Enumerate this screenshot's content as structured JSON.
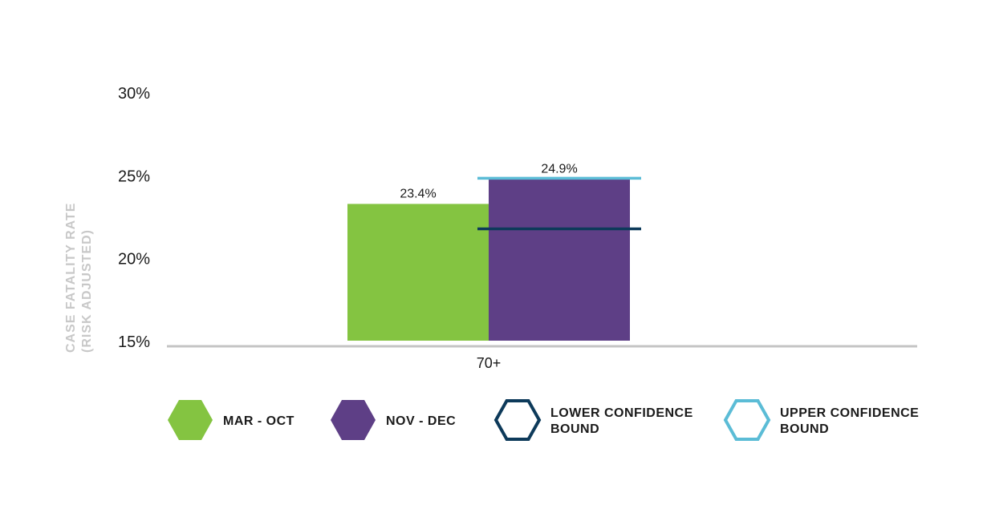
{
  "chart_data": {
    "type": "bar",
    "categories": [
      "70+"
    ],
    "series": [
      {
        "name": "MAR - OCT",
        "values": [
          23.4
        ],
        "color": "#84c441"
      },
      {
        "name": "NOV - DEC",
        "values": [
          24.9
        ],
        "color": "#5e3f86"
      }
    ],
    "confidence_bounds": {
      "series": "NOV - DEC",
      "lower": [
        21.8
      ],
      "upper": [
        25.0
      ]
    },
    "data_labels": [
      "23.4%",
      "24.9%"
    ],
    "ylabel_lines": [
      "CASE FATALITY RATE",
      "(RISK ADJUSTED)"
    ],
    "ylim": [
      15,
      30
    ],
    "yticks": [
      15,
      20,
      25,
      30
    ],
    "ytick_labels": [
      "15%",
      "20%",
      "25%",
      "30%"
    ],
    "grid": false,
    "legend_position": "bottom",
    "legend": [
      {
        "lines": [
          "MAR - OCT"
        ],
        "style": "filled",
        "color": "#84c441"
      },
      {
        "lines": [
          "NOV - DEC"
        ],
        "style": "filled",
        "color": "#5e3f86"
      },
      {
        "lines": [
          "LOWER CONFIDENCE",
          "BOUND"
        ],
        "style": "outline",
        "color": "#0d3a5a"
      },
      {
        "lines": [
          "UPPER CONFIDENCE",
          "BOUND"
        ],
        "style": "outline",
        "color": "#5bbcd6"
      }
    ],
    "colors": {
      "axis": "#c4c4c4",
      "lower_bound": "#0d3a5a",
      "upper_bound": "#5bbcd6",
      "ylabel": "#c8c8c8"
    }
  }
}
